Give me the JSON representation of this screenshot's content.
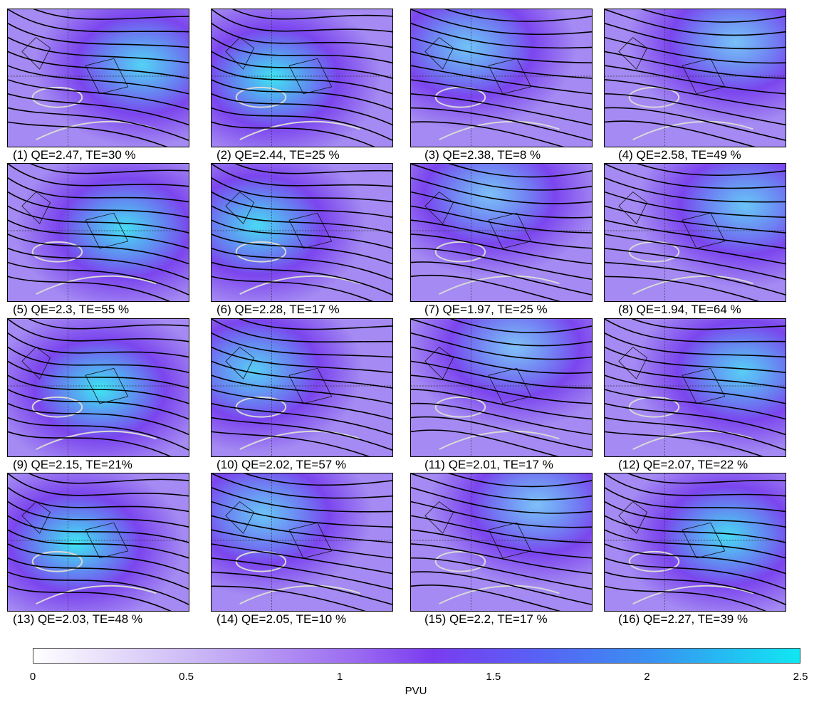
{
  "panels": [
    {
      "label": "(1) QE=2.47, TE=30 %"
    },
    {
      "label": "(2) QE=2.44, TE=25 %"
    },
    {
      "label": "(3) QE=2.38, TE=8 %"
    },
    {
      "label": "(4) QE=2.58, TE=49 %"
    },
    {
      "label": "(5) QE=2.3, TE=55 %"
    },
    {
      "label": "(6) QE=2.28, TE=17 %"
    },
    {
      "label": "(7) QE=1.97, TE=25 %"
    },
    {
      "label": "(8) QE=1.94, TE=64 %"
    },
    {
      "label": "(9) QE=2.15, TE=21%"
    },
    {
      "label": "(10) QE=2.02, TE=57 %"
    },
    {
      "label": "(11) QE=2.01, TE=17 %"
    },
    {
      "label": "(12) QE=2.07, TE=22 %"
    },
    {
      "label": "(13) QE=2.03, TE=48 %"
    },
    {
      "label": "(14) QE=2.05, TE=10 %"
    },
    {
      "label": "(15) QE=2.2, TE=17 %"
    },
    {
      "label": "(16) QE=2.27, TE=39 %"
    }
  ],
  "colorbar": {
    "label": "PVU",
    "min": 0,
    "max": 2.5,
    "ticks": [
      "0",
      "0.5",
      "1",
      "1.5",
      "2",
      "2.5"
    ],
    "colors": {
      "low": "#ffffff",
      "mid": "#7a3cf0",
      "high": "#10e7f2"
    }
  }
}
